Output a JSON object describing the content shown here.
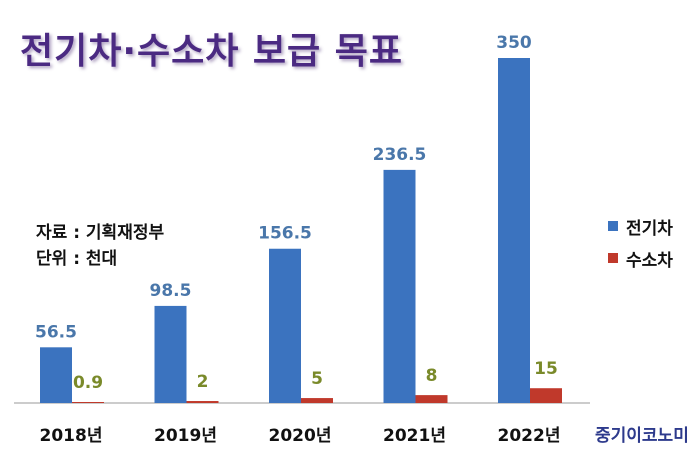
{
  "title": "전기차·수소차 보급 목표",
  "notes": {
    "source": "자료 : 기획재정부",
    "unit": "단위 : 천대"
  },
  "watermark": "중기이코노미",
  "colors": {
    "title": "#4b2a82",
    "ev_bar": "#3b73bf",
    "hydrogen_bar": "#c0392b",
    "ev_label": "#4a77aa",
    "hydrogen_label": "#7a8a2a"
  },
  "chart_data": {
    "type": "bar",
    "categories": [
      "2018년",
      "2019년",
      "2020년",
      "2021년",
      "2022년"
    ],
    "series": [
      {
        "name": "전기차",
        "values": [
          56.5,
          98.5,
          156.5,
          236.5,
          350
        ],
        "labels": [
          "56.5",
          "98.5",
          "156.5",
          "236.5",
          "350"
        ]
      },
      {
        "name": "수소차",
        "values": [
          0.9,
          2,
          5,
          8,
          15
        ],
        "labels": [
          "0.9",
          "2",
          "5",
          "8",
          "15"
        ]
      }
    ],
    "ylim": [
      0,
      350
    ],
    "grid": false,
    "legend": "right"
  }
}
